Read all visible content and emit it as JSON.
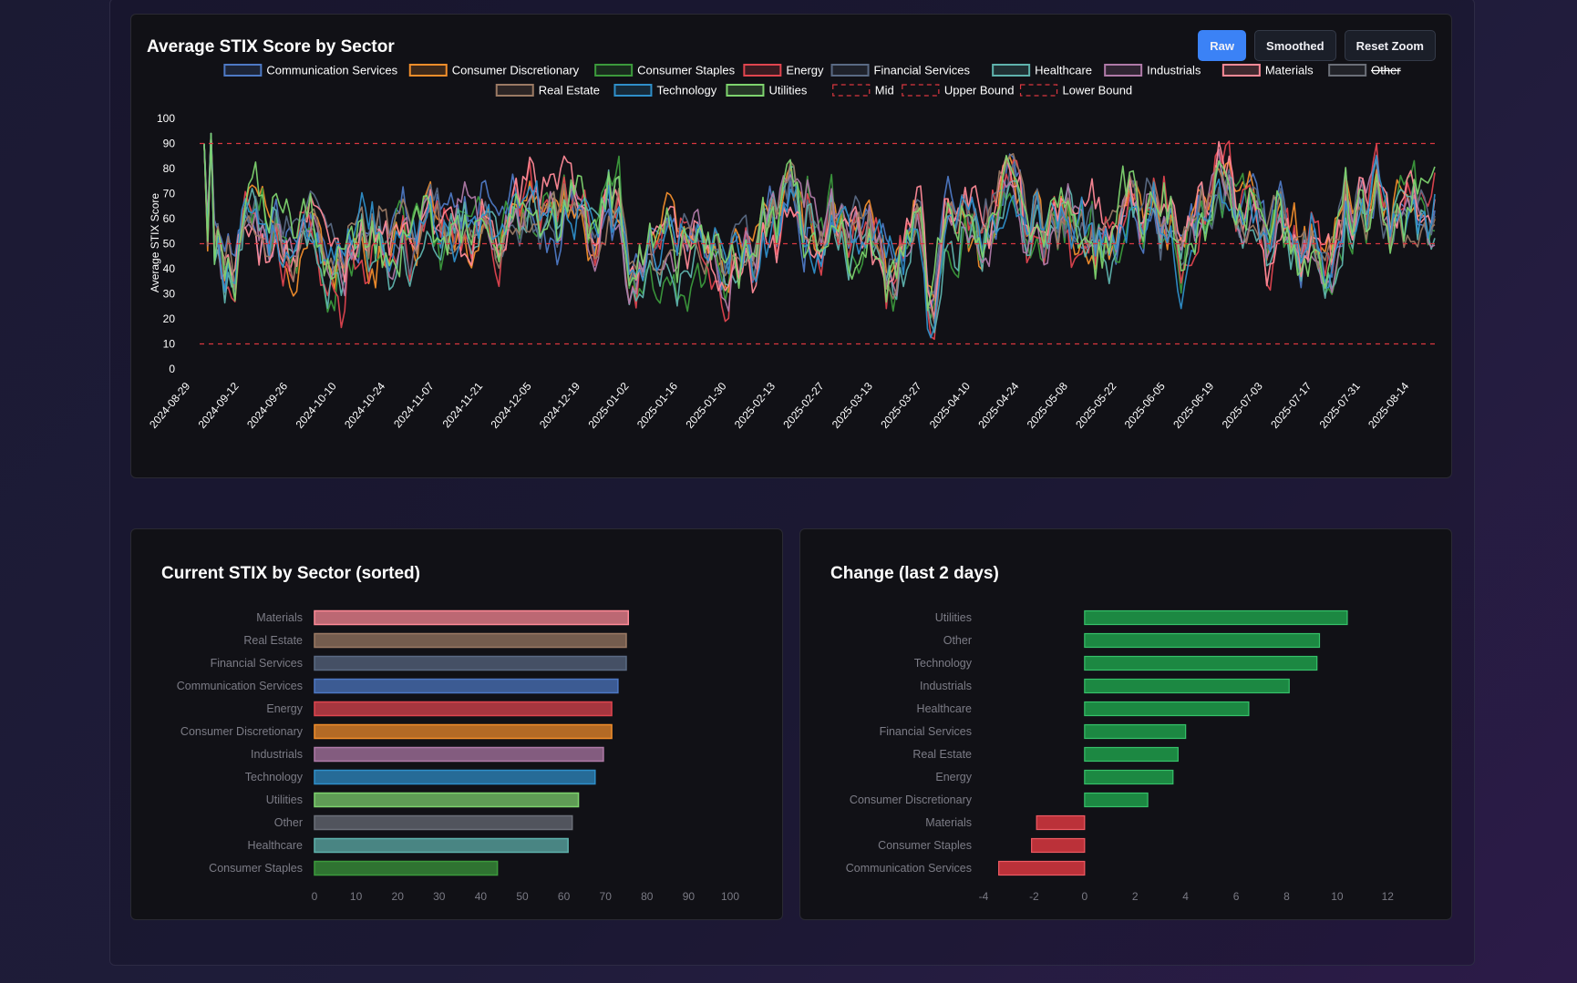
{
  "main_card": {
    "title": "Average STIX Score by Sector",
    "buttons": {
      "raw": "Raw",
      "smoothed": "Smoothed",
      "reset": "Reset Zoom"
    }
  },
  "current_card": {
    "title": "Current STIX by Sector (sorted)"
  },
  "change_card": {
    "title": "Change (last 2 days)"
  },
  "colors": {
    "accent": "#3b82f6",
    "reference_line": "#d9373f",
    "positive": "#1e9e4a",
    "negative": "#d9373f"
  },
  "chart_data": [
    {
      "type": "line",
      "title": "Average STIX Score by Sector",
      "ylabel": "Average STIX Score",
      "xlabel": "",
      "ylim": [
        0,
        100
      ],
      "y_ticks": [
        0,
        10,
        20,
        30,
        40,
        50,
        60,
        70,
        80,
        90,
        100
      ],
      "x_tick_labels": [
        "2024-08-29",
        "2024-09-12",
        "2024-09-26",
        "2024-10-10",
        "2024-10-24",
        "2024-11-07",
        "2024-11-21",
        "2024-12-05",
        "2024-12-19",
        "2025-01-02",
        "2025-01-16",
        "2025-01-30",
        "2025-02-13",
        "2025-02-27",
        "2025-03-13",
        "2025-03-27",
        "2025-04-10",
        "2025-04-24",
        "2025-05-08",
        "2025-05-22",
        "2025-06-05",
        "2025-06-19",
        "2025-07-03",
        "2025-07-17",
        "2025-07-31",
        "2025-08-14"
      ],
      "legend": "top",
      "reference_lines": [
        {
          "name": "Mid",
          "value": 50
        },
        {
          "name": "Upper Bound",
          "value": 90
        },
        {
          "name": "Lower Bound",
          "value": 10
        }
      ],
      "series": [
        {
          "name": "Communication Services",
          "color": "#4e79c4",
          "hidden": false,
          "seed": 1,
          "level": 57,
          "amp": 18
        },
        {
          "name": "Consumer Discretionary",
          "color": "#f28e2b",
          "hidden": false,
          "seed": 2,
          "level": 57,
          "amp": 18
        },
        {
          "name": "Consumer Staples",
          "color": "#3c9a3c",
          "hidden": false,
          "seed": 3,
          "level": 55,
          "amp": 20
        },
        {
          "name": "Energy",
          "color": "#e0454f",
          "hidden": false,
          "seed": 4,
          "level": 55,
          "amp": 21
        },
        {
          "name": "Financial Services",
          "color": "#5a6a84",
          "hidden": false,
          "seed": 5,
          "level": 57,
          "amp": 17
        },
        {
          "name": "Healthcare",
          "color": "#5fb3ad",
          "hidden": false,
          "seed": 6,
          "level": 54,
          "amp": 18
        },
        {
          "name": "Industrials",
          "color": "#b07aa8",
          "hidden": false,
          "seed": 7,
          "level": 57,
          "amp": 17
        },
        {
          "name": "Materials",
          "color": "#ff8a97",
          "hidden": false,
          "seed": 8,
          "level": 56,
          "amp": 19
        },
        {
          "name": "Other",
          "color": "#6b6f78",
          "hidden": true,
          "seed": 9,
          "level": 56,
          "amp": 17
        },
        {
          "name": "Real Estate",
          "color": "#9b7a64",
          "hidden": false,
          "seed": 10,
          "level": 57,
          "amp": 17
        },
        {
          "name": "Technology",
          "color": "#2f8fc9",
          "hidden": false,
          "seed": 11,
          "level": 56,
          "amp": 18
        },
        {
          "name": "Utilities",
          "color": "#7ed36e",
          "hidden": false,
          "seed": 12,
          "level": 58,
          "amp": 20
        }
      ]
    },
    {
      "type": "bar",
      "orientation": "horizontal",
      "title": "Current STIX by Sector (sorted)",
      "xlim": [
        0,
        100
      ],
      "x_ticks": [
        0,
        10,
        20,
        30,
        40,
        50,
        60,
        70,
        80,
        90,
        100
      ],
      "categories": [
        "Materials",
        "Real Estate",
        "Financial Services",
        "Communication Services",
        "Energy",
        "Consumer Discretionary",
        "Industrials",
        "Technology",
        "Utilities",
        "Other",
        "Healthcare",
        "Consumer Staples"
      ],
      "values": [
        75.5,
        75,
        75,
        73,
        71.5,
        71.5,
        69.5,
        67.5,
        63.5,
        62,
        61,
        44
      ],
      "colors": [
        "#ff8a97",
        "#9b7a64",
        "#5a6a84",
        "#4e79c4",
        "#e0454f",
        "#f28e2b",
        "#b07aa8",
        "#2f8fc9",
        "#7ed36e",
        "#6b6f78",
        "#5fb3ad",
        "#3c9a3c"
      ]
    },
    {
      "type": "bar",
      "orientation": "horizontal",
      "title": "Change (last 2 days)",
      "xlim": [
        -4,
        13
      ],
      "x_ticks": [
        -4,
        -2,
        0,
        2,
        4,
        6,
        8,
        10,
        12
      ],
      "categories": [
        "Utilities",
        "Other",
        "Technology",
        "Industrials",
        "Healthcare",
        "Financial Services",
        "Real Estate",
        "Energy",
        "Consumer Discretionary",
        "Materials",
        "Consumer Staples",
        "Communication Services"
      ],
      "values": [
        10.4,
        9.3,
        9.2,
        8.1,
        6.5,
        4.0,
        3.7,
        3.5,
        2.5,
        -1.9,
        -2.1,
        -3.4
      ]
    }
  ]
}
